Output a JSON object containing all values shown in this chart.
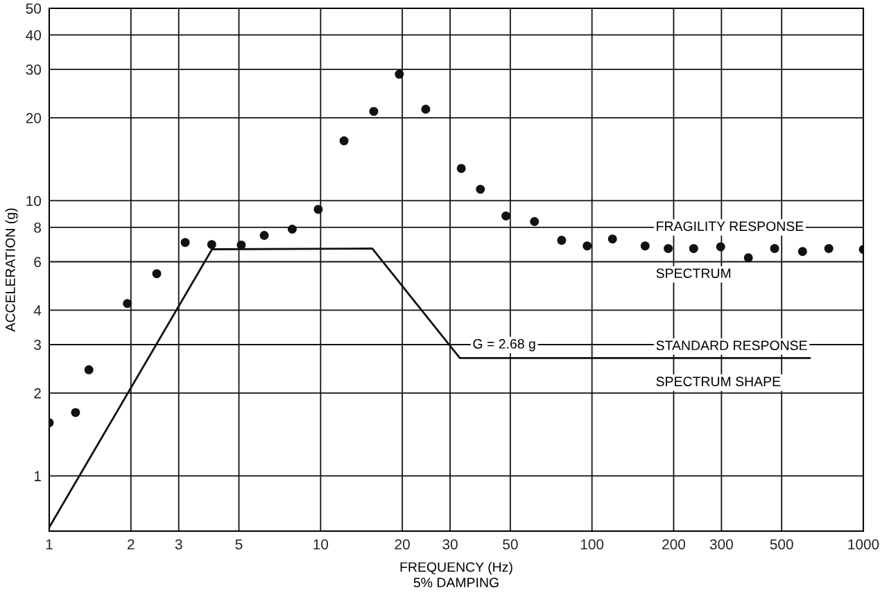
{
  "chart_data": {
    "type": "scatter",
    "xlabel": "FREQUENCY (Hz)\n5% DAMPING",
    "ylabel": "ACCELERATION (g)",
    "log": "xy",
    "series": [
      {
        "color": "#111111",
        "marker": "circle",
        "x": [
          1,
          1.25,
          1.4,
          1.94,
          2.49,
          3.17,
          3.97,
          5.1,
          6.2,
          7.86,
          9.8,
          12.2,
          15.7,
          19.5,
          24.4,
          33,
          38.8,
          48.2,
          61.4,
          77.3,
          96,
          119,
          157,
          191,
          237,
          298,
          377,
          471,
          597,
          746,
          1000
        ],
        "values": [
          1.56,
          1.7,
          2.43,
          4.23,
          5.43,
          7.05,
          6.93,
          6.9,
          7.48,
          7.88,
          9.3,
          16.5,
          21.1,
          28.8,
          21.5,
          13.1,
          11.0,
          8.8,
          8.4,
          7.18,
          6.85,
          7.26,
          6.85,
          6.7,
          6.7,
          6.8,
          6.2,
          6.7,
          6.54,
          6.7,
          6.65
        ]
      },
      {
        "type": "line",
        "color": "#111111",
        "line_style": "solid",
        "x": [
          1,
          3.98,
          15.5,
          32.6,
          635
        ],
        "values": [
          0.65,
          6.66,
          6.7,
          2.68,
          2.68
        ]
      }
    ],
    "xlim": [
      1,
      1000
    ],
    "ylim": [
      0.63,
      50
    ],
    "xticks": [
      1,
      2,
      3,
      5,
      10,
      20,
      30,
      50,
      100,
      200,
      300,
      500,
      1000
    ],
    "yticks": [
      1,
      2,
      3,
      4,
      6,
      8,
      10,
      20,
      30,
      40,
      50
    ],
    "grid": true,
    "annotations": [
      "FRAGILITY RESPONSE",
      "SPECTRUM",
      "G = 2.68 g",
      "STANDARD RESPONSE",
      "SPECTRUM SHAPE"
    ]
  }
}
